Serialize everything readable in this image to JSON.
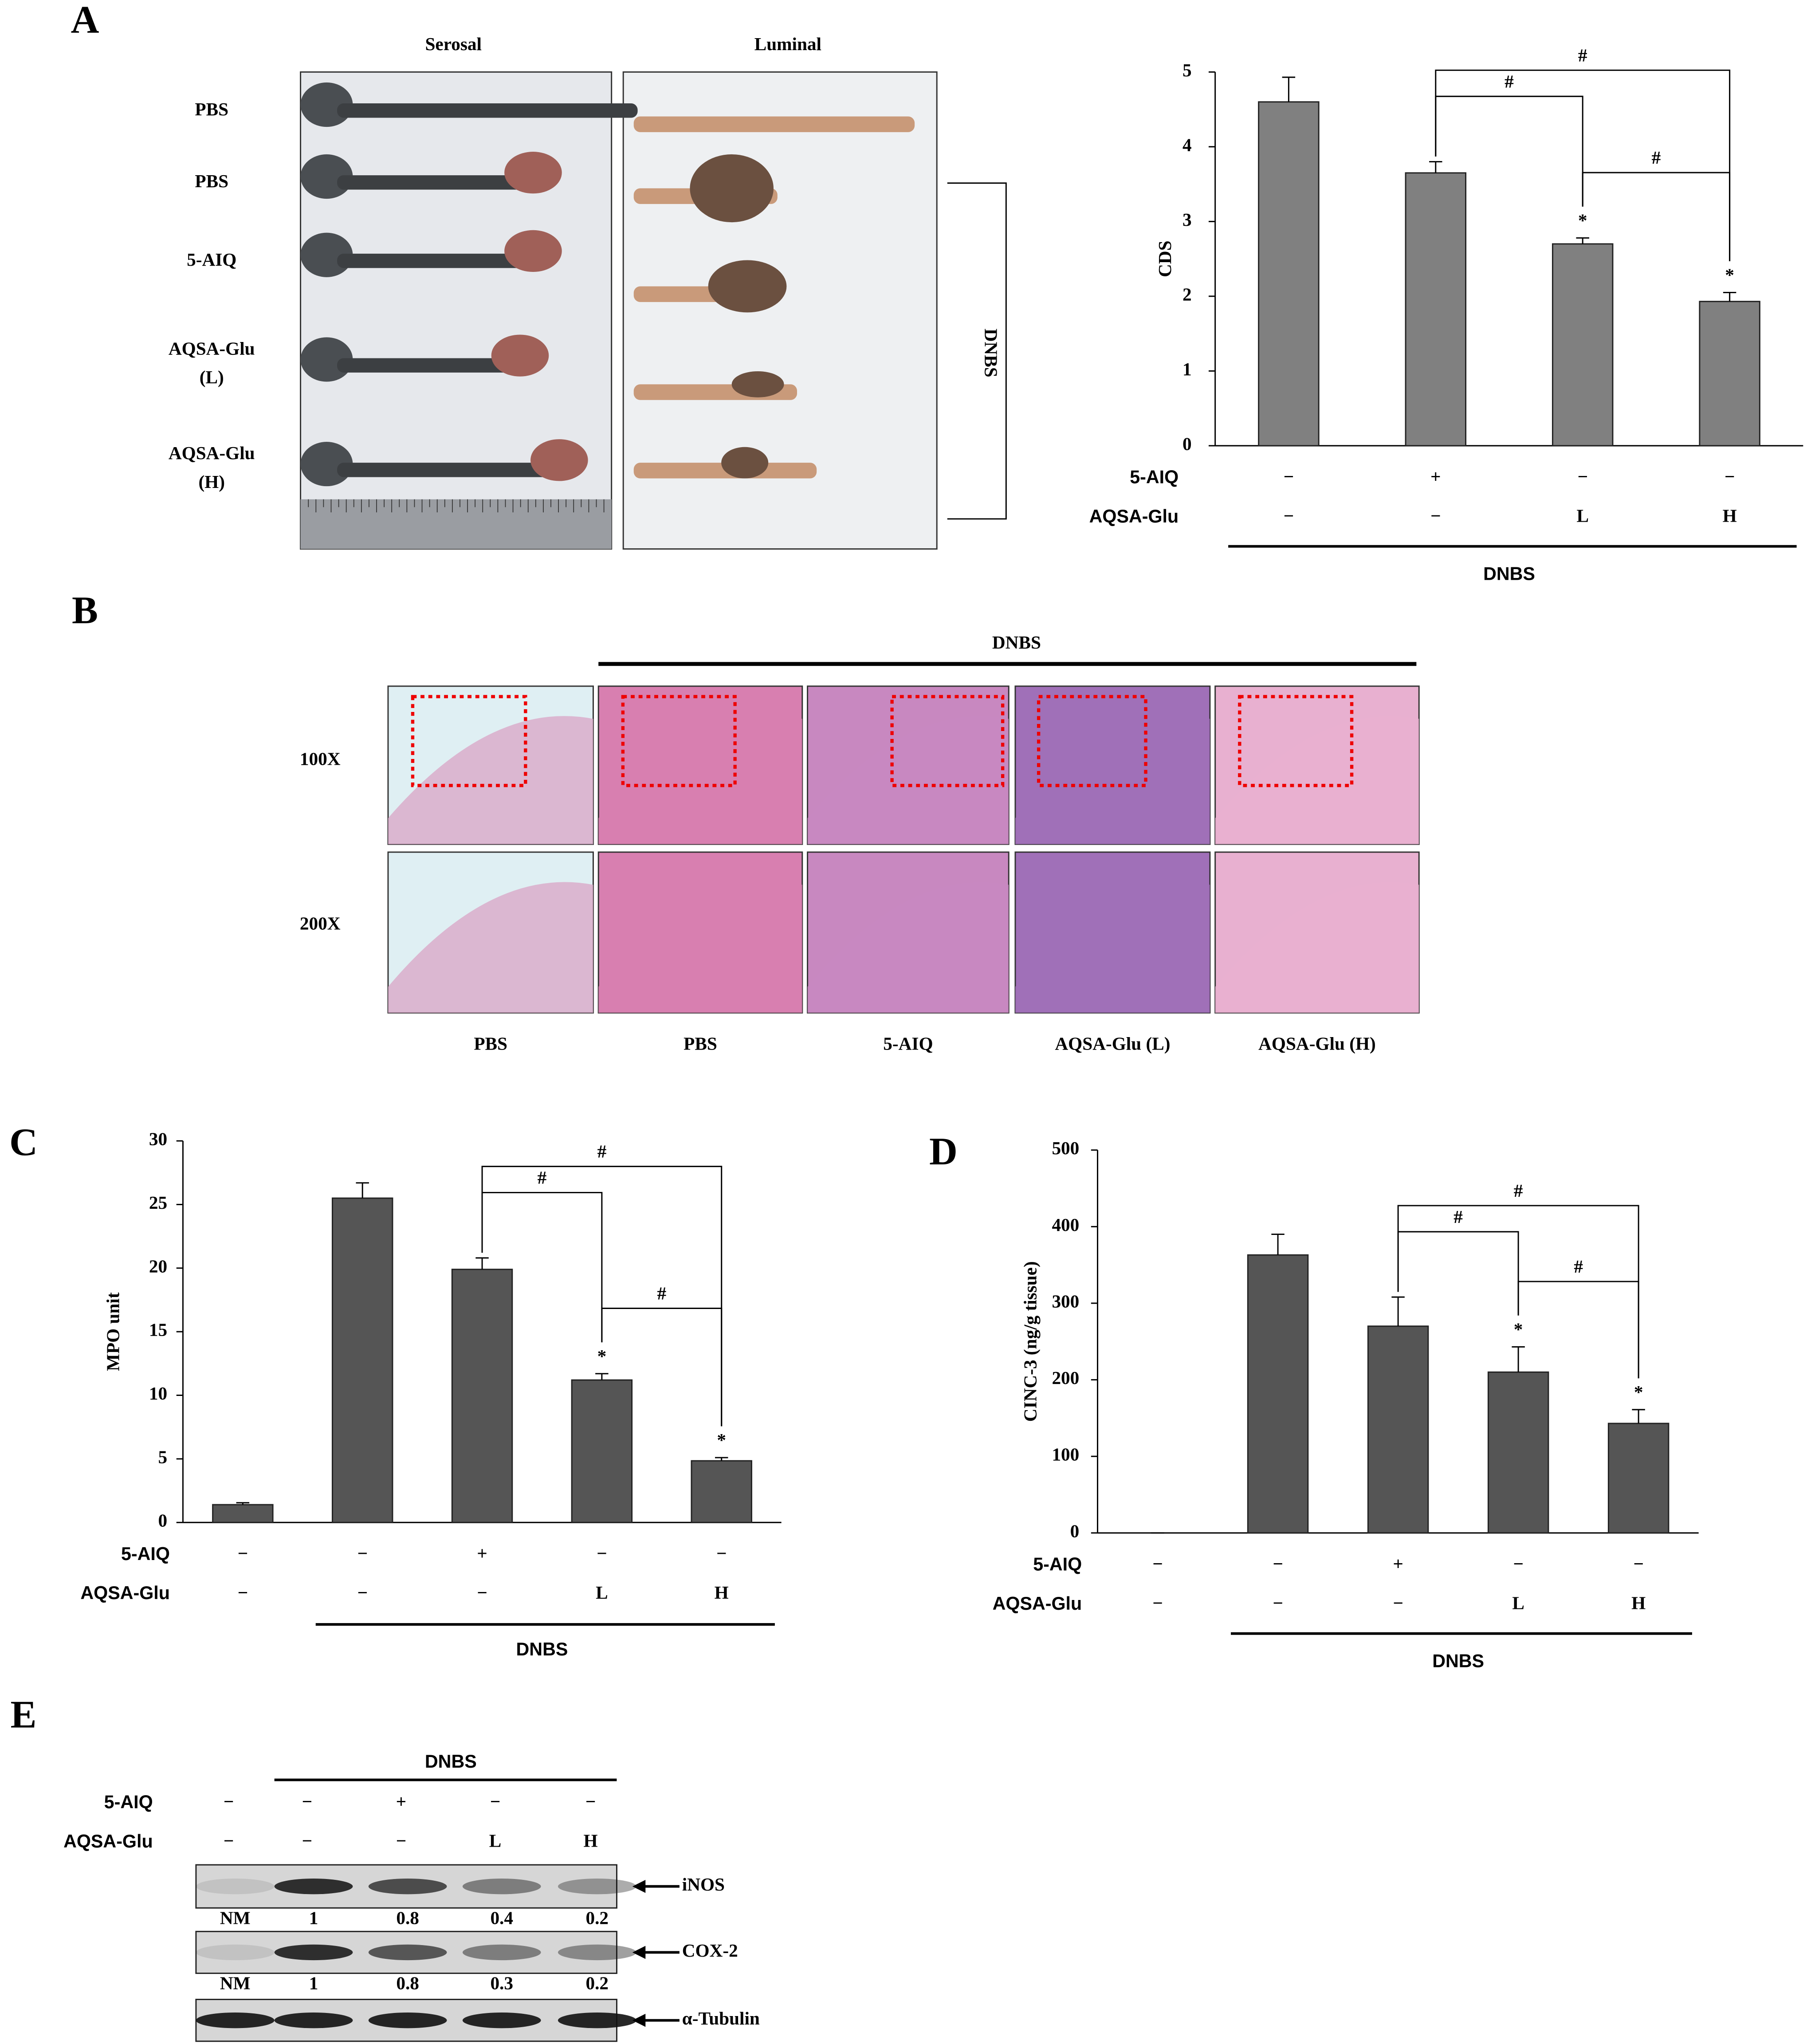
{
  "panel_labels": [
    "A",
    "B",
    "C",
    "D",
    "E"
  ],
  "panel_a": {
    "columns": [
      "Serosal",
      "Luminal"
    ],
    "rows": [
      [
        "PBS"
      ],
      [
        "PBS"
      ],
      [
        "5-AIQ"
      ],
      [
        "AQSA-Glu",
        "(L)"
      ],
      [
        "AQSA-Glu",
        "(H)"
      ]
    ],
    "group_label": "DNBS"
  },
  "panel_b": {
    "group_label": "DNBS",
    "rows": [
      "100X",
      "200X"
    ],
    "columns": [
      "PBS",
      "PBS",
      "5-AIQ",
      "AQSA-Glu (L)",
      "AQSA-Glu (H)"
    ]
  },
  "chart_data": [
    {
      "type": "bar",
      "ylabel": "CDS",
      "values": [
        4.6,
        3.65,
        2.7,
        1.93
      ],
      "errors": [
        0.33,
        0.15,
        0.08,
        0.12
      ],
      "stars": [
        null,
        null,
        "*",
        "*"
      ],
      "brackets": [
        {
          "label": "#",
          "between": [
            1,
            2
          ]
        },
        {
          "label": "#",
          "between": [
            2,
            3
          ]
        },
        {
          "label": "#",
          "between": [
            1,
            3
          ]
        }
      ],
      "ylim": [
        0,
        5
      ],
      "yticks": [
        0,
        1,
        2,
        3,
        4,
        5
      ],
      "color": "#808080",
      "treatments": [
        {
          "name": "5-AIQ",
          "labels": [
            "−",
            "+",
            "−",
            "−"
          ]
        },
        {
          "name": "AQSA-Glu",
          "labels": [
            "−",
            "−",
            "L",
            "H"
          ]
        }
      ],
      "group_label": "DNBS",
      "group_span": [
        0,
        3
      ]
    },
    {
      "type": "bar",
      "ylabel": "MPO unit",
      "values": [
        1.4,
        25.5,
        19.9,
        11.2,
        4.85
      ],
      "errors": [
        0.15,
        1.2,
        0.9,
        0.5,
        0.25
      ],
      "stars": [
        null,
        null,
        null,
        "*",
        "*"
      ],
      "brackets": [
        {
          "label": "#",
          "between": [
            2,
            3
          ]
        },
        {
          "label": "#",
          "between": [
            3,
            4
          ]
        },
        {
          "label": "#",
          "between": [
            2,
            4
          ]
        }
      ],
      "ylim": [
        0,
        30
      ],
      "yticks": [
        0,
        5,
        10,
        15,
        20,
        25,
        30
      ],
      "color": "#555555",
      "treatments": [
        {
          "name": "5-AIQ",
          "labels": [
            "−",
            "−",
            "+",
            "−",
            "−"
          ]
        },
        {
          "name": "AQSA-Glu",
          "labels": [
            "−",
            "−",
            "−",
            "L",
            "H"
          ]
        }
      ],
      "group_label": "DNBS",
      "group_span": [
        1,
        4
      ]
    },
    {
      "type": "bar",
      "ylabel": "CINC-3 (ng/g tissue)",
      "values": [
        0,
        363,
        270,
        210,
        143
      ],
      "errors": [
        0,
        27,
        38,
        33,
        18
      ],
      "stars": [
        null,
        null,
        null,
        "*",
        "*"
      ],
      "brackets": [
        {
          "label": "#",
          "between": [
            2,
            3
          ]
        },
        {
          "label": "#",
          "between": [
            3,
            4
          ]
        },
        {
          "label": "#",
          "between": [
            2,
            4
          ]
        }
      ],
      "ylim": [
        0,
        500
      ],
      "yticks": [
        0,
        100,
        200,
        300,
        400,
        500
      ],
      "color": "#555555",
      "treatments": [
        {
          "name": "5-AIQ",
          "labels": [
            "−",
            "−",
            "+",
            "−",
            "−"
          ]
        },
        {
          "name": "AQSA-Glu",
          "labels": [
            "−",
            "−",
            "−",
            "L",
            "H"
          ]
        }
      ],
      "group_label": "DNBS",
      "group_span": [
        1,
        4
      ]
    }
  ],
  "panel_e": {
    "group_label": "DNBS",
    "treatments": [
      {
        "name": "5-AIQ",
        "labels": [
          "−",
          "−",
          "+",
          "−",
          "−"
        ]
      },
      {
        "name": "AQSA-Glu",
        "labels": [
          "−",
          "−",
          "−",
          "L",
          "H"
        ]
      }
    ],
    "blots": [
      {
        "name": "iNOS",
        "values": [
          "NM",
          1,
          0.8,
          0.4,
          0.2
        ]
      },
      {
        "name": "COX-2",
        "values": [
          "NM",
          1,
          0.8,
          0.3,
          0.2
        ]
      },
      {
        "name": "α-Tubulin"
      }
    ]
  }
}
